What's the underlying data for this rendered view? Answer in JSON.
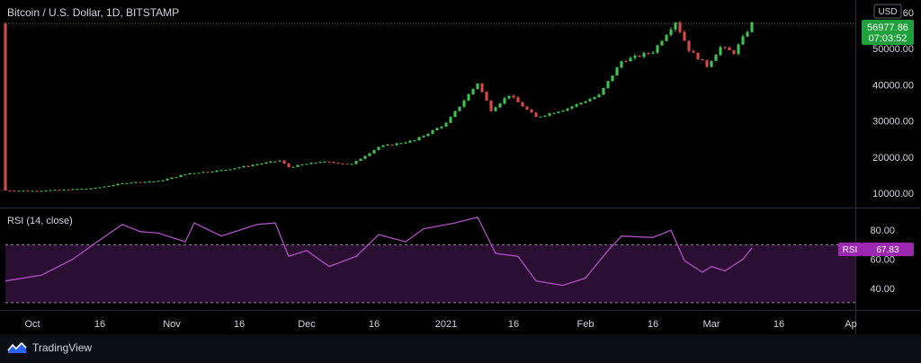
{
  "header": {
    "title": "Bitcoin / U.S. Dollar, 1D, BITSTAMP"
  },
  "currency_badge": "USD",
  "price_label": {
    "value": "56977.86",
    "countdown": "07:03:52"
  },
  "rsi_panel": {
    "title": "RSI (14, close)",
    "badge_label": "RSI",
    "badge_value": "67.83"
  },
  "brand": {
    "name": "TradingView"
  },
  "colors": {
    "background": "#000000",
    "up": "#26a69a",
    "up_bright": "#3fc34f",
    "down": "#d84a4a",
    "rsi_line": "#b04dc7",
    "rsi_band": "#2a0f33",
    "badge_price": "#1ea03b",
    "badge_rsi": "#9c27b0"
  },
  "chart_data": [
    {
      "type": "candlestick",
      "title": "Bitcoin / U.S. Dollar, 1D, BITSTAMP",
      "ylabel": "USD",
      "y_ticks": [
        "10000.00",
        "20000.00",
        "30000.00",
        "40000.00",
        "50000.00",
        "60"
      ],
      "ylim": [
        6000,
        62000
      ],
      "x_tick_labels": [
        "Oct",
        "16",
        "Nov",
        "16",
        "Dec",
        "16",
        "2021",
        "16",
        "Feb",
        "16",
        "Mar",
        "16",
        "Ap"
      ],
      "x_range": [
        "2020-09-25",
        "2021-04-02"
      ],
      "last_price": 56977.86,
      "grid": false,
      "closes": [
        {
          "date": "2020-09-25",
          "close": 10700
        },
        {
          "date": "2020-10-01",
          "close": 10600
        },
        {
          "date": "2020-10-08",
          "close": 10900
        },
        {
          "date": "2020-10-15",
          "close": 11400
        },
        {
          "date": "2020-10-22",
          "close": 12900
        },
        {
          "date": "2020-10-29",
          "close": 13300
        },
        {
          "date": "2020-11-05",
          "close": 15500
        },
        {
          "date": "2020-11-12",
          "close": 16300
        },
        {
          "date": "2020-11-19",
          "close": 17800
        },
        {
          "date": "2020-11-25",
          "close": 19000
        },
        {
          "date": "2020-11-27",
          "close": 17200
        },
        {
          "date": "2020-12-04",
          "close": 18700
        },
        {
          "date": "2020-12-11",
          "close": 18000
        },
        {
          "date": "2020-12-17",
          "close": 22800
        },
        {
          "date": "2020-12-25",
          "close": 24600
        },
        {
          "date": "2021-01-01",
          "close": 29300
        },
        {
          "date": "2021-01-08",
          "close": 40500
        },
        {
          "date": "2021-01-11",
          "close": 33000
        },
        {
          "date": "2021-01-15",
          "close": 37200
        },
        {
          "date": "2021-01-21",
          "close": 31000
        },
        {
          "date": "2021-01-28",
          "close": 33500
        },
        {
          "date": "2021-02-04",
          "close": 37100
        },
        {
          "date": "2021-02-09",
          "close": 46500
        },
        {
          "date": "2021-02-16",
          "close": 49200
        },
        {
          "date": "2021-02-21",
          "close": 57500
        },
        {
          "date": "2021-02-24",
          "close": 49700
        },
        {
          "date": "2021-02-28",
          "close": 45200
        },
        {
          "date": "2021-03-03",
          "close": 50400
        },
        {
          "date": "2021-03-06",
          "close": 48900
        },
        {
          "date": "2021-03-10",
          "close": 56977.86
        }
      ]
    },
    {
      "type": "line",
      "title": "RSI (14, close)",
      "y_ticks": [
        "80.00",
        "60.00",
        "40.00"
      ],
      "ylim": [
        25,
        95
      ],
      "bands": [
        70,
        30
      ],
      "last_value": 67.83,
      "values": [
        {
          "date": "2020-09-25",
          "rsi": 45
        },
        {
          "date": "2020-10-03",
          "rsi": 49
        },
        {
          "date": "2020-10-10",
          "rsi": 60
        },
        {
          "date": "2020-10-14",
          "rsi": 69
        },
        {
          "date": "2020-10-21",
          "rsi": 84
        },
        {
          "date": "2020-10-25",
          "rsi": 79
        },
        {
          "date": "2020-10-29",
          "rsi": 78
        },
        {
          "date": "2020-11-04",
          "rsi": 72
        },
        {
          "date": "2020-11-06",
          "rsi": 85
        },
        {
          "date": "2020-11-12",
          "rsi": 76
        },
        {
          "date": "2020-11-16",
          "rsi": 80
        },
        {
          "date": "2020-11-20",
          "rsi": 84
        },
        {
          "date": "2020-11-24",
          "rsi": 85
        },
        {
          "date": "2020-11-27",
          "rsi": 62
        },
        {
          "date": "2020-12-01",
          "rsi": 66
        },
        {
          "date": "2020-12-06",
          "rsi": 55
        },
        {
          "date": "2020-12-12",
          "rsi": 62
        },
        {
          "date": "2020-12-17",
          "rsi": 77
        },
        {
          "date": "2020-12-23",
          "rsi": 72
        },
        {
          "date": "2020-12-27",
          "rsi": 81
        },
        {
          "date": "2021-01-03",
          "rsi": 85
        },
        {
          "date": "2021-01-08",
          "rsi": 89
        },
        {
          "date": "2021-01-12",
          "rsi": 64
        },
        {
          "date": "2021-01-17",
          "rsi": 62
        },
        {
          "date": "2021-01-21",
          "rsi": 45
        },
        {
          "date": "2021-01-27",
          "rsi": 42
        },
        {
          "date": "2021-02-01",
          "rsi": 47
        },
        {
          "date": "2021-02-06",
          "rsi": 66
        },
        {
          "date": "2021-02-09",
          "rsi": 76
        },
        {
          "date": "2021-02-16",
          "rsi": 75
        },
        {
          "date": "2021-02-20",
          "rsi": 80
        },
        {
          "date": "2021-02-23",
          "rsi": 59
        },
        {
          "date": "2021-02-27",
          "rsi": 51
        },
        {
          "date": "2021-03-01",
          "rsi": 55
        },
        {
          "date": "2021-03-04",
          "rsi": 52
        },
        {
          "date": "2021-03-08",
          "rsi": 60
        },
        {
          "date": "2021-03-10",
          "rsi": 67.83
        }
      ]
    }
  ]
}
